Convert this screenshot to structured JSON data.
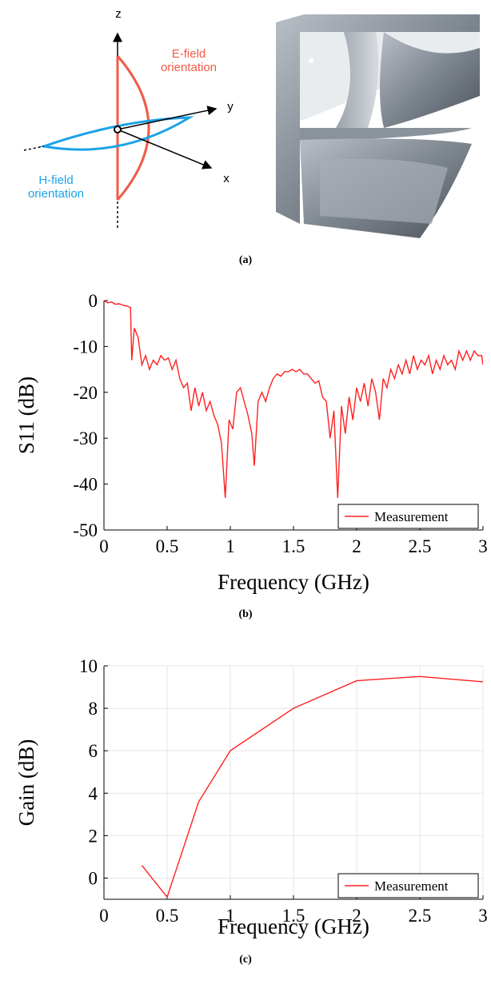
{
  "figure_a": {
    "caption": "(a)",
    "axes": {
      "z": "z",
      "y": "y",
      "x": "x"
    },
    "e_field": [
      "E-field",
      "orientation"
    ],
    "h_field": [
      "H-field",
      "orientation"
    ]
  },
  "chart_data": [
    {
      "type": "line",
      "caption": "(b)",
      "xlabel": "Frequency (GHz)",
      "ylabel": "S11 (dB)",
      "x": [
        0,
        0.03,
        0.06,
        0.09,
        0.12,
        0.15,
        0.18,
        0.21,
        0.22,
        0.24,
        0.27,
        0.3,
        0.33,
        0.36,
        0.39,
        0.42,
        0.45,
        0.48,
        0.51,
        0.54,
        0.57,
        0.6,
        0.63,
        0.66,
        0.69,
        0.72,
        0.75,
        0.78,
        0.81,
        0.84,
        0.87,
        0.9,
        0.93,
        0.96,
        0.99,
        1.02,
        1.05,
        1.08,
        1.11,
        1.14,
        1.17,
        1.19,
        1.22,
        1.25,
        1.28,
        1.31,
        1.34,
        1.37,
        1.4,
        1.43,
        1.46,
        1.49,
        1.52,
        1.55,
        1.58,
        1.61,
        1.64,
        1.67,
        1.7,
        1.73,
        1.76,
        1.79,
        1.82,
        1.85,
        1.88,
        1.91,
        1.94,
        1.97,
        2.0,
        2.03,
        2.06,
        2.09,
        2.12,
        2.15,
        2.18,
        2.21,
        2.24,
        2.27,
        2.3,
        2.33,
        2.36,
        2.39,
        2.42,
        2.45,
        2.48,
        2.51,
        2.54,
        2.57,
        2.6,
        2.63,
        2.66,
        2.69,
        2.72,
        2.75,
        2.78,
        2.81,
        2.84,
        2.87,
        2.9,
        2.93,
        2.96,
        2.99,
        3.0
      ],
      "series": [
        {
          "name": "Measurement",
          "color": "#ff2020",
          "values": [
            0,
            -0.5,
            -0.3,
            -0.8,
            -0.7,
            -1,
            -1.2,
            -1.5,
            -13,
            -6,
            -8,
            -14,
            -12,
            -15,
            -13,
            -14,
            -12,
            -13,
            -12.5,
            -15,
            -13,
            -17,
            -19,
            -18,
            -24,
            -19,
            -23,
            -20,
            -24,
            -22,
            -25,
            -27,
            -31,
            -43,
            -26,
            -28,
            -20,
            -19,
            -22,
            -25,
            -29,
            -36,
            -22,
            -20,
            -22,
            -19,
            -17,
            -16,
            -16.5,
            -15.5,
            -15.5,
            -15,
            -15.5,
            -15,
            -16,
            -16,
            -17,
            -18,
            -17.5,
            -21,
            -22,
            -30,
            -24,
            -43,
            -23,
            -29,
            -21,
            -26,
            -19,
            -22,
            -18,
            -23,
            -17,
            -20,
            -26,
            -17,
            -19,
            -15,
            -17,
            -14,
            -16,
            -13,
            -16,
            -12,
            -15,
            -13,
            -14,
            -12,
            -16,
            -13,
            -15,
            -12,
            -14,
            -13,
            -15,
            -11,
            -13,
            -11,
            -13,
            -11,
            -12,
            -12,
            -14
          ]
        }
      ],
      "xlim": [
        0,
        3
      ],
      "ylim": [
        -50,
        0
      ],
      "xticks": [
        0,
        0.5,
        1,
        1.5,
        2,
        2.5,
        3
      ],
      "yticks": [
        0,
        -10,
        -20,
        -30,
        -40,
        -50
      ],
      "grid": false,
      "legend": "lower right"
    },
    {
      "type": "line",
      "caption": "(c)",
      "xlabel": "Frequency (GHz)",
      "ylabel": "Gain (dB)",
      "x": [
        0.3,
        0.5,
        0.75,
        1,
        1.5,
        2,
        2.5,
        3
      ],
      "series": [
        {
          "name": "Measurement",
          "color": "#ff2020",
          "values": [
            0.6,
            -0.9,
            3.6,
            6,
            8,
            9.3,
            9.5,
            9.25
          ]
        }
      ],
      "xlim": [
        0,
        3
      ],
      "ylim": [
        -1,
        10
      ],
      "xticks": [
        0,
        0.5,
        1,
        1.5,
        2,
        2.5,
        3
      ],
      "yticks": [
        0,
        2,
        4,
        6,
        8,
        10
      ],
      "grid": true,
      "legend": "lower right"
    }
  ]
}
